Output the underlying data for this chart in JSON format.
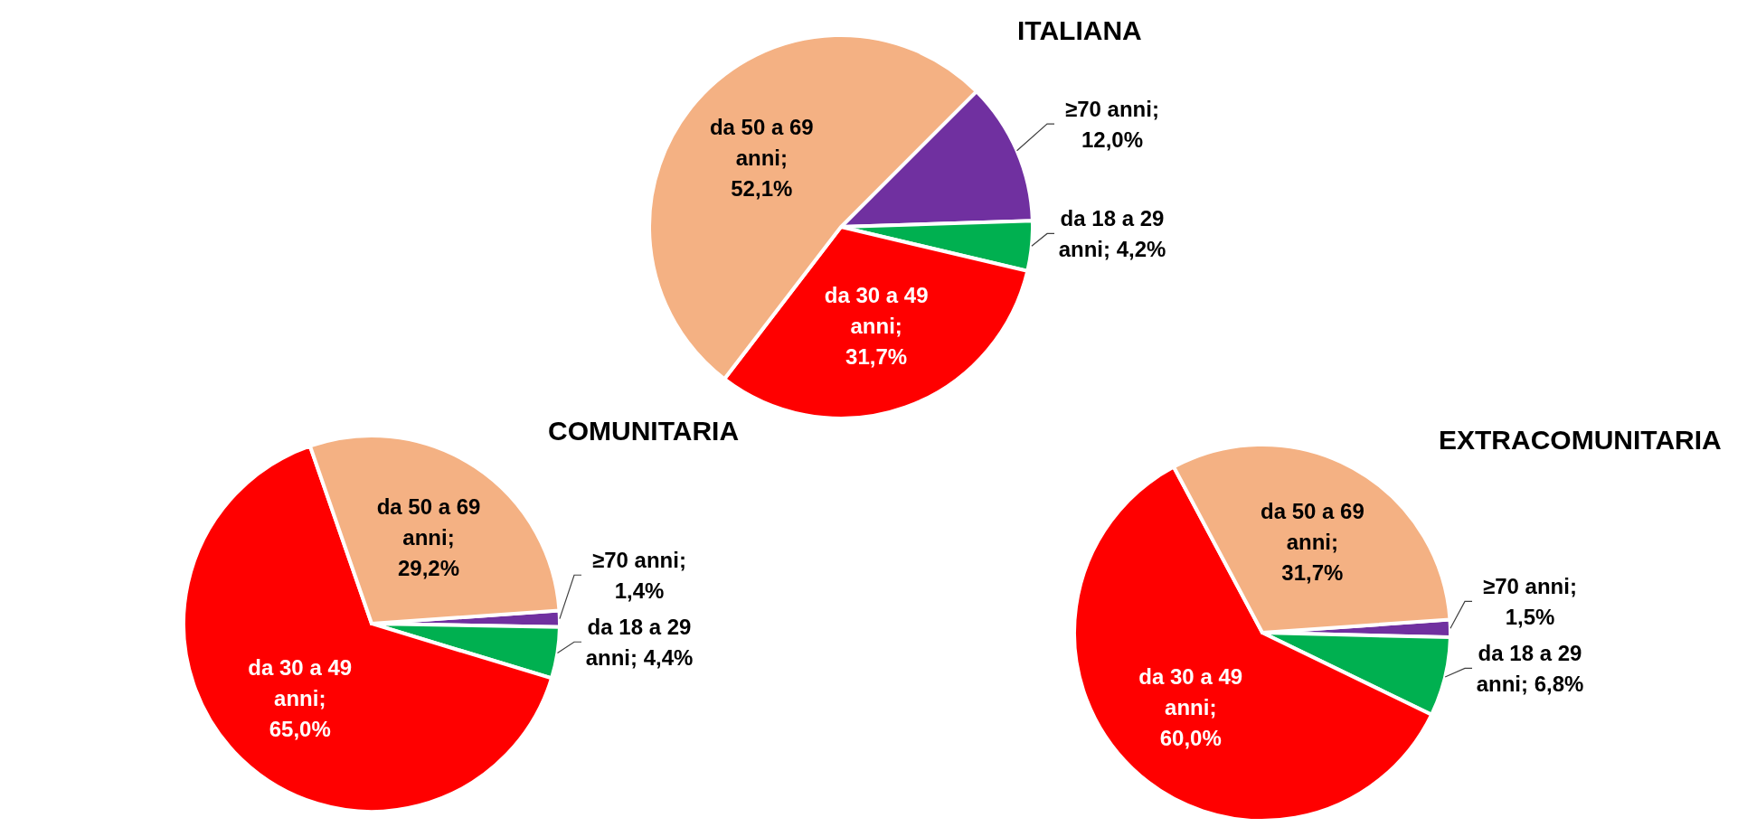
{
  "chart_data": [
    {
      "type": "pie",
      "title": "ITALIANA",
      "categories": [
        "≥70 anni",
        "da 18 a 29 anni",
        "da 30 a 49 anni",
        "da 50 a 69 anni"
      ],
      "values": [
        12.0,
        4.2,
        31.7,
        52.1
      ],
      "value_labels": [
        "; 12,0%",
        "; 4,2%",
        "; 31,7%",
        "; 52,1%"
      ],
      "colors": [
        "#7030a0",
        "#00b050",
        "#ff0000",
        "#f4b183"
      ]
    },
    {
      "type": "pie",
      "title": "COMUNITARIA",
      "categories": [
        "≥70 anni",
        "da 18 a 29 anni",
        "da 30 a 49 anni",
        "da 50 a 69 anni"
      ],
      "values": [
        1.4,
        4.4,
        65.0,
        29.2
      ],
      "value_labels": [
        "; 1,4%",
        "; 4,4%",
        "; 65,0%",
        "; 29,2%"
      ],
      "colors": [
        "#7030a0",
        "#00b050",
        "#ff0000",
        "#f4b183"
      ]
    },
    {
      "type": "pie",
      "title": "EXTRACOMUNITARIA",
      "categories": [
        "≥70 anni",
        "da 18 a 29 anni",
        "da 30 a 49 anni",
        "da 50 a 69 anni"
      ],
      "values": [
        1.5,
        6.8,
        60.0,
        31.7
      ],
      "value_labels": [
        "; 1,5%",
        "; 6,8%",
        "; 60,0%",
        "; 31,7%"
      ],
      "colors": [
        "#7030a0",
        "#00b050",
        "#ff0000",
        "#f4b183"
      ]
    }
  ]
}
